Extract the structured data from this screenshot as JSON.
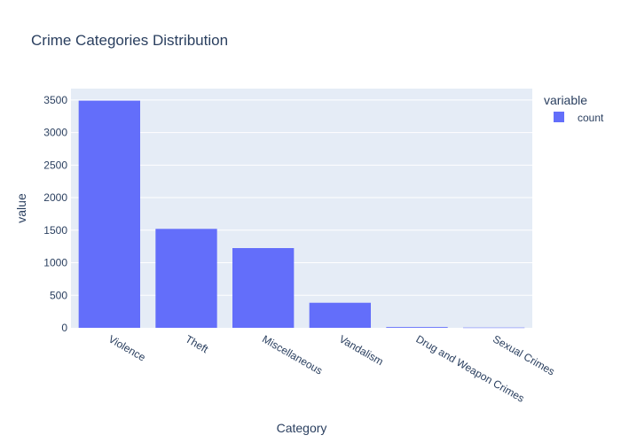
{
  "chart_data": {
    "type": "bar",
    "title": "Crime Categories Distribution",
    "xlabel": "Category",
    "ylabel": "value",
    "categories": [
      "Violence",
      "Theft",
      "Miscellaneous",
      "Vandalism",
      "Drug and Weapon Crimes",
      "Sexual Crimes"
    ],
    "series": [
      {
        "name": "count",
        "values": [
          3490,
          1520,
          1225,
          385,
          12,
          4
        ]
      }
    ],
    "ylim": [
      0,
      3675
    ],
    "yticks": [
      0,
      500,
      1000,
      1500,
      2000,
      2500,
      3000,
      3500
    ],
    "ytick_labels": [
      "0",
      "500",
      "1000",
      "1500",
      "2000",
      "2500",
      "3000",
      "3500"
    ],
    "legend": {
      "title": "variable",
      "placement": "top-right"
    },
    "grid": true,
    "colors": {
      "bar": "#636efa",
      "plot_bg": "#e5ecf6",
      "grid": "#ffffff",
      "text": "#2a3f5f"
    }
  }
}
